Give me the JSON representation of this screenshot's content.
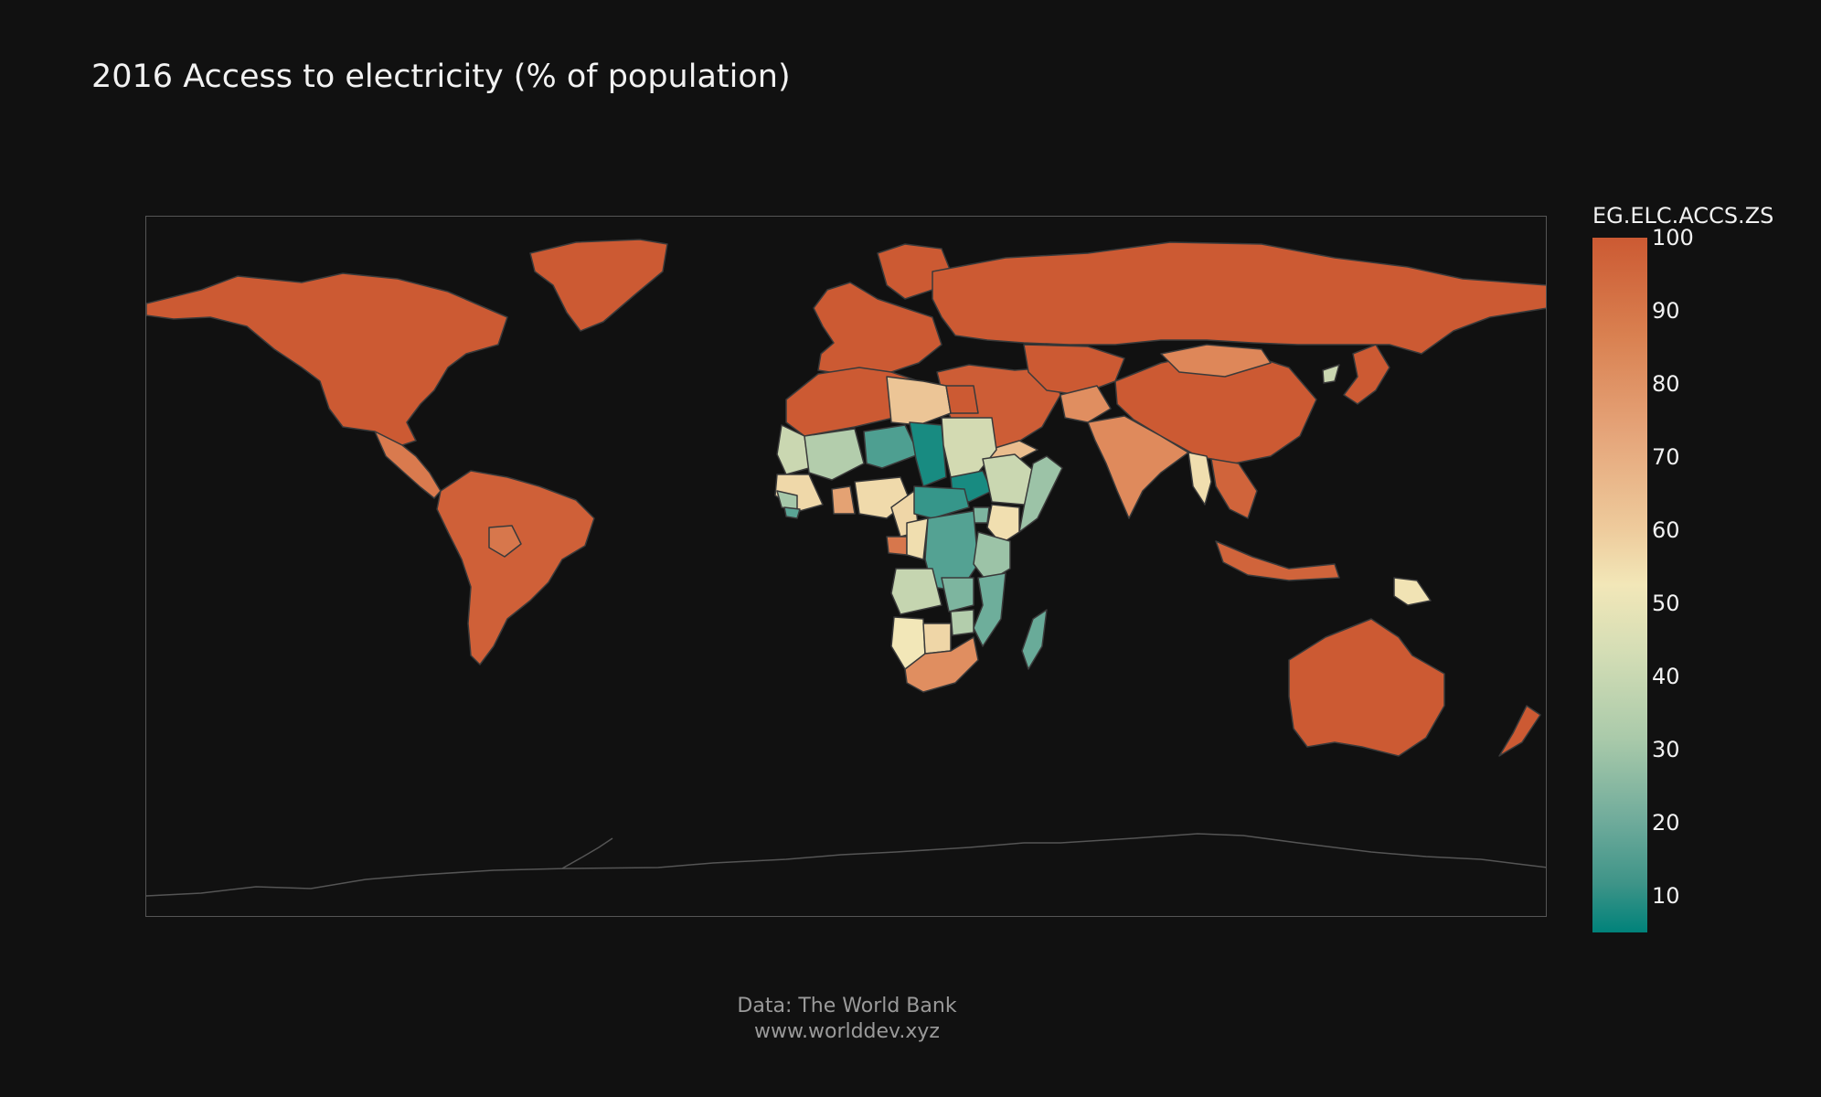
{
  "title": "2016 Access to electricity (% of population)",
  "colorbar": {
    "title": "EG.ELC.ACCS.ZS",
    "ticks": [
      "100",
      "90",
      "80",
      "70",
      "60",
      "50",
      "40",
      "30",
      "20",
      "10"
    ],
    "range": [
      5,
      100
    ],
    "colors": {
      "high": "#cc5a33",
      "mid": "#f2e7b8",
      "low": "#00827a"
    }
  },
  "source": {
    "line1": "Data: The World Bank",
    "line2": "www.worlddev.xyz"
  },
  "chart_data": {
    "type": "choropleth",
    "indicator": "EG.ELC.ACCS.ZS",
    "year": 2016,
    "projection": "equirectangular",
    "values": {
      "North America": 100,
      "Greenland": 100,
      "Central America": 90,
      "South America": 98,
      "Bolivia": 91,
      "Europe": 100,
      "Russia": 100,
      "Middle East": 99,
      "Central Asia": 100,
      "China": 100,
      "Mongolia": 86,
      "India": 85,
      "Afghanistan": 84,
      "Myanmar": 57,
      "Southeast Asia": 97,
      "Japan": 100,
      "North Korea": 43,
      "Indonesia": 97,
      "Papua New Guinea": 54,
      "Australia": 100,
      "New Zealand": 100,
      "Yemen": 72,
      "North Africa": 100,
      "Libya": 70,
      "Mauritania": 43,
      "Mali": 38,
      "Niger": 18,
      "Chad": 9,
      "Sudan": 45,
      "South Sudan": 9,
      "Ethiopia": 43,
      "Somalia": 33,
      "Kenya": 56,
      "Nigeria": 59,
      "Ghana": 79,
      "West Africa coast": 60,
      "Guinea": 35,
      "Sierra Leone": 20,
      "Gabon": 91,
      "Central African Republic": 14,
      "Cameroon": 61,
      "DR Congo": 19,
      "Congo": 57,
      "Angola": 42,
      "Namibia": 52,
      "Zambia": 27,
      "Tanzania": 33,
      "Mozambique": 24,
      "Zimbabwe": 38,
      "Botswana": 61,
      "South Africa": 84,
      "Madagascar": 23,
      "Uganda": 27
    }
  }
}
